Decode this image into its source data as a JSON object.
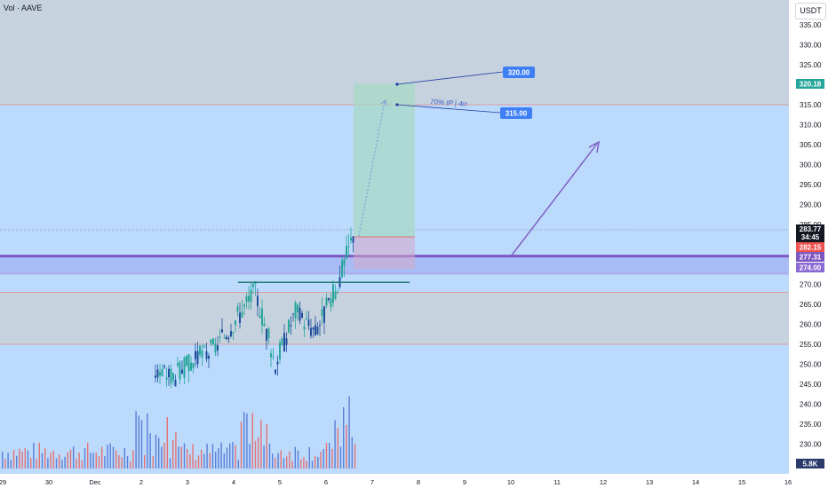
{
  "header": {
    "indicator_label": "Vol · AAVE",
    "currency_button": "USDT"
  },
  "colors": {
    "zone_blue": "#bbdafc",
    "zone_grey": "#c6d2de",
    "zone_purple": "#a4b6f4",
    "green": "#26a69a",
    "red": "#ef5350",
    "vol_blue": "#5a7fd8",
    "vol_red": "#e57373",
    "purple": "#7e57c2",
    "label_blue": "#3f7ff6",
    "tp_green": "#26a69a"
  },
  "price_axis": {
    "ticks": [
      "335.00",
      "330.00",
      "325.00",
      "320.00",
      "315.00",
      "310.00",
      "305.00",
      "300.00",
      "295.00",
      "290.00",
      "285.00",
      "270.00",
      "265.00",
      "260.00",
      "255.00",
      "250.00",
      "245.00",
      "240.00",
      "235.00",
      "230.00"
    ],
    "badges": {
      "tp": "320.18",
      "last_price": "283.77",
      "countdown": "34:45",
      "price_2": "282.15",
      "price_3": "277.31",
      "price_4": "274.00",
      "volume": "5.8K"
    }
  },
  "time_axis": {
    "ticks": [
      "29",
      "30",
      "Dec",
      "2",
      "3",
      "4",
      "5",
      "6",
      "7",
      "8",
      "9",
      "10",
      "11",
      "12",
      "13",
      "14",
      "15",
      "16"
    ]
  },
  "annotations": {
    "target_high": "320.00",
    "target_low": "315.00",
    "tp_note": "70% tP | 4rr"
  },
  "chart_data": {
    "type": "candlestick",
    "symbol": "AAVE",
    "quote": "USDT",
    "ylim": [
      225,
      338
    ],
    "series": [
      {
        "t": 0,
        "o": 248,
        "h": 250,
        "l": 244,
        "c": 247
      },
      {
        "t": 1,
        "o": 247,
        "h": 252,
        "l": 245,
        "c": 251
      },
      {
        "t": 2,
        "o": 251,
        "h": 256,
        "l": 249,
        "c": 254
      },
      {
        "t": 3,
        "o": 254,
        "h": 263,
        "l": 252,
        "c": 261
      },
      {
        "t": 4,
        "o": 261,
        "h": 272,
        "l": 258,
        "c": 268
      },
      {
        "t": 5,
        "o": 268,
        "h": 270,
        "l": 246,
        "c": 250
      },
      {
        "t": 6,
        "o": 250,
        "h": 267,
        "l": 246,
        "c": 263
      },
      {
        "t": 7,
        "o": 263,
        "h": 266,
        "l": 241,
        "c": 258
      },
      {
        "t": 8,
        "o": 258,
        "h": 271,
        "l": 257,
        "c": 268
      },
      {
        "t": 9,
        "o": 268,
        "h": 291,
        "l": 266,
        "c": 284
      }
    ],
    "levels": {
      "resistance_top": 315,
      "zone_top": 277.31,
      "zone_bottom": 274.0,
      "grey_zone_top": 268,
      "grey_zone_bottom": 255,
      "breakout_line": 270.5,
      "last_price": 283.77,
      "entry": 282.15,
      "tp": 320.18,
      "stop": 274.0
    }
  }
}
